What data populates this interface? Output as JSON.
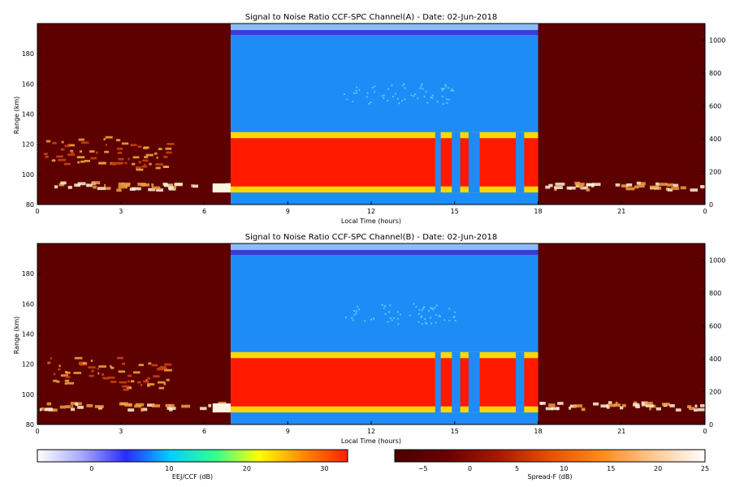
{
  "chart_data": [
    {
      "type": "heatmap",
      "title": "Signal to Noise Ratio CCF-SPC Channel(A) - Date: 02-Jun-2018",
      "xlabel": "Local Time (hours)",
      "ylabel": "Range (km)",
      "xlim": [
        0,
        24
      ],
      "ylim": [
        80,
        200
      ],
      "xticks": [
        "0",
        "3",
        "6",
        "9",
        "12",
        "15",
        "18",
        "21",
        "0"
      ],
      "yticks": [
        "80",
        "100",
        "120",
        "140",
        "160",
        "180"
      ],
      "right_ylim": [
        0,
        1100
      ],
      "right_yticks": [
        "0",
        "200",
        "400",
        "600",
        "800",
        "1000"
      ],
      "night_windows": [
        [
          0,
          6.95
        ],
        [
          18,
          24
        ]
      ],
      "day_window": [
        6.95,
        18
      ],
      "day_layer_range_km": [
        88,
        128
      ],
      "upper_echo_range_km": [
        146,
        160
      ]
    },
    {
      "type": "heatmap",
      "title": "Signal to Noise Ratio CCF-SPC Channel(B) - Date: 02-Jun-2018",
      "xlabel": "Local Time (hours)",
      "ylabel": "Range (km)",
      "xlim": [
        0,
        24
      ],
      "ylim": [
        80,
        200
      ],
      "xticks": [
        "0",
        "3",
        "6",
        "9",
        "12",
        "15",
        "18",
        "21",
        "0"
      ],
      "yticks": [
        "80",
        "100",
        "120",
        "140",
        "160",
        "180"
      ],
      "right_ylim": [
        0,
        1100
      ],
      "right_yticks": [
        "0",
        "200",
        "400",
        "600",
        "800",
        "1000"
      ],
      "night_windows": [
        [
          0,
          6.95
        ],
        [
          18,
          24
        ]
      ],
      "day_window": [
        6.95,
        18
      ],
      "day_layer_range_km": [
        88,
        128
      ],
      "upper_echo_range_km": [
        146,
        160
      ]
    }
  ],
  "colorbars": [
    {
      "label": "EEJ/CCF (dB)",
      "range": [
        -7,
        33
      ],
      "ticks": [
        "0",
        "10",
        "20",
        "30"
      ],
      "colors": [
        "#ffffff",
        "#a8a8ff",
        "#2a2aff",
        "#00d0ff",
        "#30ff90",
        "#ffff00",
        "#ff8a00",
        "#ff2000"
      ]
    },
    {
      "label": "Spread-F (dB)",
      "range": [
        -8,
        25
      ],
      "ticks": [
        "−5",
        "0",
        "5",
        "10",
        "15",
        "20",
        "25"
      ],
      "colors": [
        "#4a0000",
        "#6a0000",
        "#a81800",
        "#e85000",
        "#ff8a1a",
        "#ffc890",
        "#ffffff"
      ]
    }
  ],
  "colors": {
    "night_bg": "#5c0000",
    "day_bg": "#1e8cf6",
    "day_layer": "#ff1a00",
    "top_band": "#3a3adc"
  }
}
